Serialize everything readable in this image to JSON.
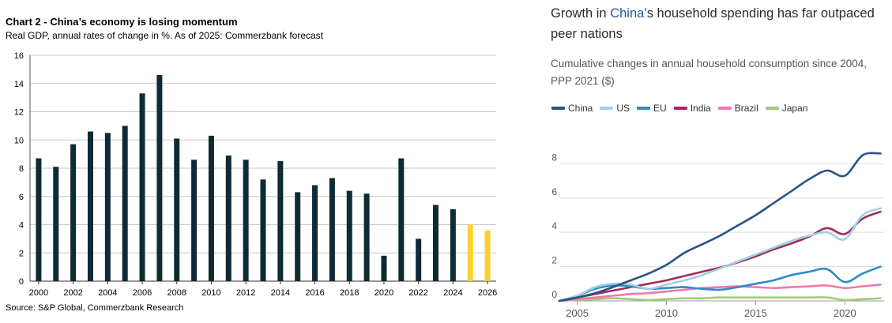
{
  "left_chart": {
    "title": "Chart 2 - China’s economy is losing momentum",
    "subtitle": "Real GDP, annual rates of change in %. As of 2025: Commerzbank forecast",
    "source": "Source: S&P Global, Commerzbank Research",
    "colors": {
      "actual": "#0d2b33",
      "forecast": "#fcd22a",
      "grid": "#c8c8c8"
    }
  },
  "right_chart": {
    "title_part1": "Growth in ",
    "title_highlight": "China",
    "title_part2": "’s household spending has far outpaced peer nations",
    "subtitle": "Cumulative changes in annual household consumption since 2004, PPP 2021 ($)",
    "colors": {
      "highlight": "#1f5a96"
    }
  },
  "chart_data": [
    {
      "type": "bar",
      "categories": [
        "2000",
        "2001",
        "2002",
        "2003",
        "2004",
        "2005",
        "2006",
        "2007",
        "2008",
        "2009",
        "2010",
        "2011",
        "2012",
        "2013",
        "2014",
        "2015",
        "2016",
        "2017",
        "2018",
        "2019",
        "2020",
        "2021",
        "2022",
        "2023",
        "2024",
        "2025",
        "2026"
      ],
      "values": [
        8.7,
        8.1,
        9.7,
        10.6,
        10.5,
        11.0,
        13.3,
        14.6,
        10.1,
        8.6,
        10.3,
        8.9,
        8.6,
        7.2,
        8.5,
        6.3,
        6.8,
        7.3,
        6.4,
        6.2,
        1.8,
        8.7,
        3.0,
        5.4,
        5.1,
        4.0,
        3.6
      ],
      "forecast_from": "2025",
      "xticks": [
        "2000",
        "2002",
        "2004",
        "2006",
        "2008",
        "2010",
        "2012",
        "2014",
        "2016",
        "2018",
        "2020",
        "2022",
        "2024",
        "2026"
      ],
      "yticks": [
        0,
        2,
        4,
        6,
        8,
        10,
        12,
        14,
        16
      ],
      "ylim": [
        0,
        16
      ],
      "grid": "horizontal",
      "title": "Chart 2 - China’s economy is losing momentum",
      "subtitle": "Real GDP, annual rates of change in %. As of 2025: Commerzbank forecast"
    },
    {
      "type": "line",
      "x": [
        2004,
        2005,
        2006,
        2007,
        2008,
        2009,
        2010,
        2011,
        2012,
        2013,
        2014,
        2015,
        2016,
        2017,
        2018,
        2019,
        2020,
        2021,
        2022
      ],
      "series": [
        {
          "name": "China",
          "color": "#2b5283",
          "values": [
            0,
            0.2,
            0.45,
            0.8,
            1.2,
            1.6,
            2.1,
            2.8,
            3.3,
            3.8,
            4.4,
            5.0,
            5.7,
            6.4,
            7.1,
            7.6,
            7.3,
            8.5,
            8.6
          ]
        },
        {
          "name": "US",
          "color": "#9dd1e6",
          "values": [
            0,
            0.3,
            0.8,
            1.0,
            0.95,
            0.7,
            0.95,
            1.2,
            1.5,
            1.9,
            2.3,
            2.7,
            3.1,
            3.5,
            3.8,
            4.0,
            3.6,
            5.0,
            5.4
          ]
        },
        {
          "name": "EU",
          "color": "#2f8ac6",
          "values": [
            0,
            0.3,
            0.7,
            0.9,
            0.85,
            0.7,
            0.75,
            0.8,
            0.7,
            0.65,
            0.8,
            1.0,
            1.2,
            1.5,
            1.7,
            1.85,
            1.1,
            1.6,
            2.0
          ]
        },
        {
          "name": "India",
          "color": "#a32a5a",
          "values": [
            0,
            0.2,
            0.4,
            0.6,
            0.8,
            1.0,
            1.2,
            1.45,
            1.7,
            1.95,
            2.25,
            2.6,
            3.0,
            3.35,
            3.75,
            4.25,
            3.9,
            4.8,
            5.2
          ]
        },
        {
          "name": "Brazil",
          "color": "#ef7aa9",
          "values": [
            0,
            0.1,
            0.2,
            0.3,
            0.4,
            0.45,
            0.55,
            0.65,
            0.75,
            0.8,
            0.85,
            0.8,
            0.75,
            0.8,
            0.85,
            0.9,
            0.75,
            0.85,
            0.95
          ]
        },
        {
          "name": "Japan",
          "color": "#a4c97a",
          "values": [
            0,
            0.05,
            0.1,
            0.15,
            0.1,
            0.05,
            0.1,
            0.15,
            0.15,
            0.2,
            0.2,
            0.2,
            0.2,
            0.2,
            0.2,
            0.2,
            0.05,
            0.1,
            0.15
          ]
        }
      ],
      "xticks": [
        2005,
        2010,
        2015,
        2020
      ],
      "yticks": [
        0,
        2,
        4,
        6,
        8
      ],
      "xlim": [
        2004,
        2022.2
      ],
      "ylim": [
        0,
        8.8
      ],
      "grid": "horizontal",
      "legend": "top-left",
      "title": "Growth in China’s household spending has far outpaced peer nations",
      "subtitle": "Cumulative changes in annual household consumption since 2004, PPP 2021 ($)"
    }
  ]
}
